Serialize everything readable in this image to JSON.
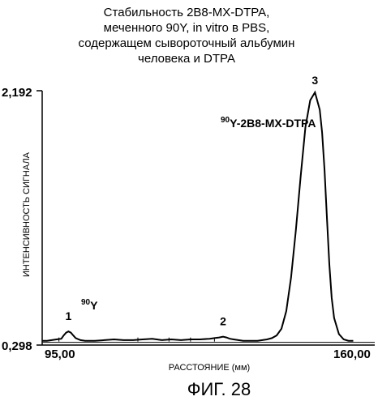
{
  "chart_data": {
    "type": "line",
    "title_lines": [
      "Стабильность 2B8-MX-DTPA,",
      "меченного 90Y, in vitro в PBS,",
      "содержащем сывороточный альбумин",
      "человека и DTPA"
    ],
    "xlabel": "РАССТОЯНИЕ (мм)",
    "ylabel": "ИНТЕНСИВНОСТЬ СИГНАЛА",
    "xlim": [
      95.0,
      160.0
    ],
    "ylim": [
      0.298,
      2.192
    ],
    "x_tick_labels": [
      "95,00",
      "160,00"
    ],
    "y_tick_labels": [
      "2,192",
      "0,298"
    ],
    "grid": false,
    "series": [
      {
        "x": [
          95.0,
          96.0,
          97.0,
          98.0,
          99.0,
          99.5,
          100.0,
          100.5,
          101.0,
          101.5,
          102.0,
          103.0,
          104.0,
          106.0,
          108.0,
          110.0,
          112.0,
          114.0,
          116.0,
          118.0,
          120.0,
          122.0,
          124.0,
          126.0,
          128.0,
          130.0,
          131.0,
          132.0,
          132.8,
          133.5,
          134.2,
          135.0,
          136.0,
          137.0,
          138.0,
          139.0,
          140.0,
          141.0,
          142.0,
          143.0,
          144.0,
          145.0,
          146.0,
          147.0,
          148.0,
          149.0,
          150.0,
          151.0,
          152.0,
          153.0,
          153.5,
          154.0,
          154.5,
          155.0,
          155.5,
          156.0,
          157.0,
          158.0,
          159.0,
          160.0
        ],
        "y": [
          0.33,
          0.33,
          0.335,
          0.34,
          0.345,
          0.37,
          0.39,
          0.4,
          0.39,
          0.37,
          0.35,
          0.335,
          0.33,
          0.33,
          0.335,
          0.34,
          0.335,
          0.335,
          0.34,
          0.345,
          0.335,
          0.34,
          0.335,
          0.34,
          0.34,
          0.345,
          0.35,
          0.355,
          0.36,
          0.355,
          0.345,
          0.34,
          0.335,
          0.33,
          0.33,
          0.33,
          0.33,
          0.335,
          0.34,
          0.35,
          0.37,
          0.42,
          0.55,
          0.8,
          1.15,
          1.55,
          1.92,
          2.12,
          2.18,
          2.05,
          1.88,
          1.6,
          1.25,
          0.9,
          0.65,
          0.5,
          0.38,
          0.34,
          0.33,
          0.33
        ]
      }
    ],
    "baseline_y": 0.318,
    "annotations": [
      {
        "label": "1",
        "x": 100.5
      },
      {
        "label": "2",
        "x": 132.8
      },
      {
        "label": "3",
        "x": 152.0
      }
    ],
    "isotope_labels": {
      "y90": {
        "sup": "90",
        "text": "Y"
      },
      "conjugate": {
        "sup": "90",
        "text": "Y-2B8-MX-DTPA"
      }
    }
  },
  "figure_caption": "ФИГ. 28"
}
